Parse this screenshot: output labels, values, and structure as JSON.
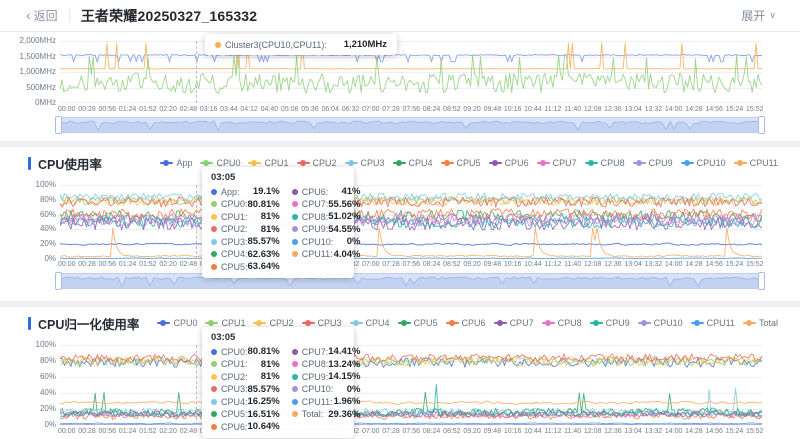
{
  "header": {
    "back_label": "返回",
    "title": "王者荣耀20250327_165332",
    "expand_label": "展开"
  },
  "ui": {
    "accent_color": "#2f6be6",
    "brush_fill": "#d7e2f8",
    "brush_border": "#bdcdf2"
  },
  "time_ticks": [
    "00:00",
    "00:28",
    "00:56",
    "01:24",
    "01:52",
    "02:20",
    "02:48",
    "03:16",
    "03:44",
    "04:12",
    "04:40",
    "05:08",
    "05:36",
    "06:04",
    "06:32",
    "07:00",
    "07:28",
    "07:56",
    "08:24",
    "08:52",
    "09:20",
    "09:48",
    "10:16",
    "10:44",
    "11:12",
    "11:40",
    "12:08",
    "12:36",
    "13:04",
    "13:32",
    "14:00",
    "14:28",
    "14:56",
    "15:24",
    "15:52"
  ],
  "chart_data": [
    {
      "id": "cpu-frequency",
      "type": "line",
      "title": "",
      "ylabel": "MHz",
      "y_ticks": [
        "2,000MHz",
        "1,500MHz",
        "1,000MHz",
        "500MHz",
        "0MHz"
      ],
      "y_max": 2000,
      "grid": true,
      "series": [
        {
          "name": "series-blue",
          "color": "#7b97e6",
          "base": 1545,
          "noise": 20,
          "spike_to": 1330,
          "spike_chance": 0.1
        },
        {
          "name": "Cluster3(CPU10,CPU11)",
          "color": "#f4af52",
          "base": 1105,
          "noise": 6,
          "spike_to": 1930,
          "spike_chance": 0.03
        },
        {
          "name": "series-green",
          "color": "#8fce7d",
          "base": 640,
          "noise": 330,
          "spike_to": 1480,
          "spike_chance": 0.06
        }
      ],
      "tooltip": {
        "title": "",
        "rows": [
          {
            "name": "Cluster3(CPU10,CPU11)",
            "value": "1,210MHz"
          }
        ]
      }
    },
    {
      "id": "cpu-usage",
      "type": "line",
      "title": "CPU使用率",
      "ylabel": "%",
      "y_ticks": [
        "100%",
        "80%",
        "60%",
        "40%",
        "20%",
        "0%"
      ],
      "y_max": 100,
      "grid": true,
      "legend_position": "top-right",
      "series": [
        {
          "name": "App",
          "color": "#4a6fdc",
          "base": 20,
          "noise": 2.2
        },
        {
          "name": "CPU0",
          "color": "#8ed072",
          "base": 79,
          "noise": 6
        },
        {
          "name": "CPU1",
          "color": "#f7c44d",
          "base": 78,
          "noise": 6
        },
        {
          "name": "CPU2",
          "color": "#ec6a63",
          "base": 77,
          "noise": 7
        },
        {
          "name": "CPU3",
          "color": "#84c7e6",
          "base": 84,
          "noise": 5
        },
        {
          "name": "CPU4",
          "color": "#2fa866",
          "base": 58,
          "noise": 8
        },
        {
          "name": "CPU5",
          "color": "#f57c45",
          "base": 60,
          "noise": 8
        },
        {
          "name": "CPU6",
          "color": "#8f58b5",
          "base": 48,
          "noise": 9
        },
        {
          "name": "CPU7",
          "color": "#e673c4",
          "base": 54,
          "noise": 8
        },
        {
          "name": "CPU8",
          "color": "#27b6a7",
          "base": 50,
          "noise": 8
        },
        {
          "name": "CPU9",
          "color": "#a492dc",
          "base": 52,
          "noise": 8
        },
        {
          "name": "CPU10",
          "color": "#4aa0e8",
          "base": 1,
          "noise": 0.8
        },
        {
          "name": "CPU11",
          "color": "#f8a95c",
          "base": 4,
          "noise": 2,
          "spike_to": 42,
          "spike_chance": 0.02
        }
      ],
      "tooltip": {
        "title": "03:05",
        "columns": [
          [
            {
              "name": "App",
              "value": "19.1%"
            },
            {
              "name": "CPU0",
              "value": "80.81%"
            },
            {
              "name": "CPU1",
              "value": "81%"
            },
            {
              "name": "CPU2",
              "value": "81%"
            },
            {
              "name": "CPU3",
              "value": "85.57%"
            },
            {
              "name": "CPU4",
              "value": "62.63%"
            },
            {
              "name": "CPU5",
              "value": "63.64%"
            }
          ],
          [
            {
              "name": "CPU6",
              "value": "41%"
            },
            {
              "name": "CPU7",
              "value": "55.56%"
            },
            {
              "name": "CPU8",
              "value": "51.02%"
            },
            {
              "name": "CPU9",
              "value": "54.55%"
            },
            {
              "name": "CPU10",
              "value": "0%"
            },
            {
              "name": "CPU11",
              "value": "4.04%"
            }
          ]
        ]
      }
    },
    {
      "id": "cpu-normalized-usage",
      "type": "line",
      "title": "CPU归一化使用率",
      "ylabel": "%",
      "y_ticks": [
        "100%",
        "80%",
        "60%",
        "40%",
        "20%",
        "0%"
      ],
      "y_max": 100,
      "grid": true,
      "legend_position": "top-right",
      "series": [
        {
          "name": "CPU0",
          "color": "#4a6fdc",
          "base": 78,
          "noise": 6
        },
        {
          "name": "CPU1",
          "color": "#8ed072",
          "base": 80,
          "noise": 6
        },
        {
          "name": "CPU2",
          "color": "#f7c44d",
          "base": 80,
          "noise": 6
        },
        {
          "name": "CPU3",
          "color": "#ec6a63",
          "base": 84,
          "noise": 5
        },
        {
          "name": "CPU4",
          "color": "#84c7e6",
          "base": 16,
          "noise": 5,
          "spike_to": 45,
          "spike_chance": 0.015
        },
        {
          "name": "CPU5",
          "color": "#2fa866",
          "base": 16,
          "noise": 5,
          "spike_to": 40,
          "spike_chance": 0.015
        },
        {
          "name": "CPU6",
          "color": "#f57c45",
          "base": 11,
          "noise": 4
        },
        {
          "name": "CPU7",
          "color": "#8f58b5",
          "base": 14,
          "noise": 4
        },
        {
          "name": "CPU8",
          "color": "#e673c4",
          "base": 13,
          "noise": 4
        },
        {
          "name": "CPU9",
          "color": "#27b6a7",
          "base": 14,
          "noise": 4,
          "spike_to": 50,
          "spike_chance": 0.01
        },
        {
          "name": "CPU10",
          "color": "#a492dc",
          "base": 0.5,
          "noise": 0.5
        },
        {
          "name": "CPU11",
          "color": "#4aa0e8",
          "base": 2,
          "noise": 1
        },
        {
          "name": "Total",
          "color": "#f8a95c",
          "base": 28,
          "noise": 3
        }
      ],
      "tooltip": {
        "title": "03:05",
        "columns": [
          [
            {
              "name": "CPU0",
              "value": "80.81%"
            },
            {
              "name": "CPU1",
              "value": "81%"
            },
            {
              "name": "CPU2",
              "value": "81%"
            },
            {
              "name": "CPU3",
              "value": "85.57%"
            },
            {
              "name": "CPU4",
              "value": "16.25%"
            },
            {
              "name": "CPU5",
              "value": "16.51%"
            },
            {
              "name": "CPU6",
              "value": "10.64%"
            }
          ],
          [
            {
              "name": "CPU7",
              "value": "14.41%"
            },
            {
              "name": "CPU8",
              "value": "13.24%"
            },
            {
              "name": "CPU9",
              "value": "14.15%"
            },
            {
              "name": "CPU10",
              "value": "0%"
            },
            {
              "name": "CPU11",
              "value": "1.96%"
            },
            {
              "name": "Total",
              "value": "29.36%"
            }
          ]
        ]
      }
    }
  ]
}
